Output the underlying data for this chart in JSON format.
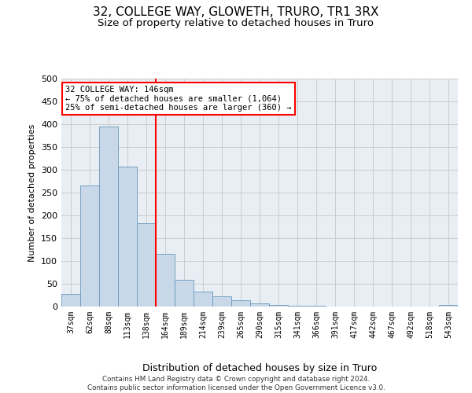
{
  "title": "32, COLLEGE WAY, GLOWETH, TRURO, TR1 3RX",
  "subtitle": "Size of property relative to detached houses in Truro",
  "xlabel": "Distribution of detached houses by size in Truro",
  "ylabel": "Number of detached properties",
  "footer_line1": "Contains HM Land Registry data © Crown copyright and database right 2024.",
  "footer_line2": "Contains public sector information licensed under the Open Government Licence v3.0.",
  "bin_labels": [
    "37sqm",
    "62sqm",
    "88sqm",
    "113sqm",
    "138sqm",
    "164sqm",
    "189sqm",
    "214sqm",
    "239sqm",
    "265sqm",
    "290sqm",
    "315sqm",
    "341sqm",
    "366sqm",
    "391sqm",
    "417sqm",
    "442sqm",
    "467sqm",
    "492sqm",
    "518sqm",
    "543sqm"
  ],
  "bar_values": [
    28,
    265,
    395,
    307,
    182,
    115,
    58,
    32,
    23,
    13,
    7,
    3,
    1,
    1,
    0,
    0,
    0,
    0,
    0,
    0,
    3
  ],
  "bar_color": "#c8d8e8",
  "bar_edge_color": "#6699bb",
  "vline_x": 4.5,
  "vline_color": "red",
  "annotation_text": "32 COLLEGE WAY: 146sqm\n← 75% of detached houses are smaller (1,064)\n25% of semi-detached houses are larger (360) →",
  "annotation_box_color": "white",
  "annotation_box_edge": "red",
  "ylim": [
    0,
    500
  ],
  "yticks": [
    0,
    50,
    100,
    150,
    200,
    250,
    300,
    350,
    400,
    450,
    500
  ],
  "grid_color": "#cccccc",
  "bg_color": "#e8eef4",
  "title_fontsize": 11,
  "subtitle_fontsize": 9.5
}
